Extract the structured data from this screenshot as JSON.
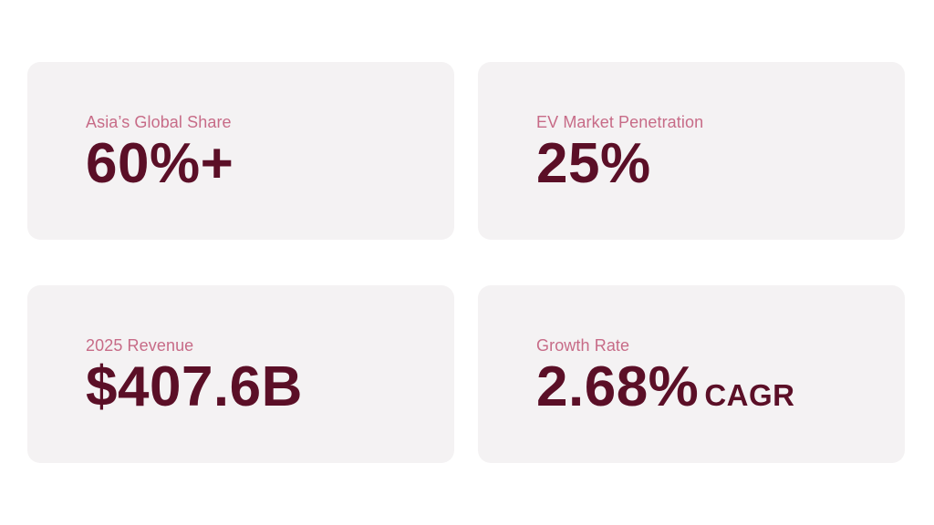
{
  "stats": [
    {
      "label": "Asia’s Global Share",
      "value": "60%+",
      "suffix": ""
    },
    {
      "label": "EV Market Penetration",
      "value": "25%",
      "suffix": ""
    },
    {
      "label": "2025 Revenue",
      "value": "$407.6B",
      "suffix": ""
    },
    {
      "label": "Growth Rate",
      "value": "2.68%",
      "suffix": "CAGR"
    }
  ],
  "colors": {
    "card_background": "#f4f2f3",
    "label": "#c76b87",
    "value": "#5b0f27"
  }
}
